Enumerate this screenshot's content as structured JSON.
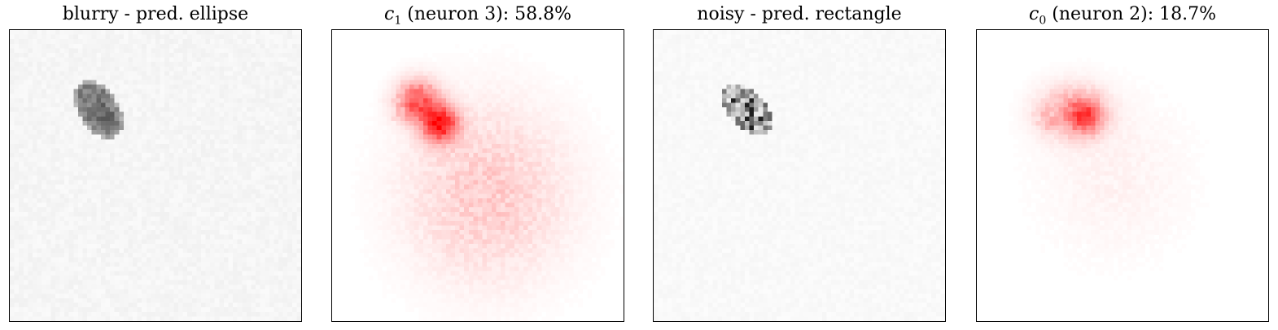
{
  "panels": [
    {
      "title_text": "blurry - pred. ellipse",
      "colormap": "gray",
      "base_color": "#000000"
    },
    {
      "title_symbol": "c",
      "title_subscript": "1",
      "title_suffix": " (neuron 3): 58.8%",
      "colormap": "red",
      "base_color": "#ff0000"
    },
    {
      "title_text": "noisy - pred. rectangle",
      "colormap": "gray",
      "base_color": "#000000"
    },
    {
      "title_symbol": "c",
      "title_subscript": "0",
      "title_suffix": " (neuron 2): 18.7%",
      "colormap": "red",
      "base_color": "#ff0000"
    }
  ]
}
